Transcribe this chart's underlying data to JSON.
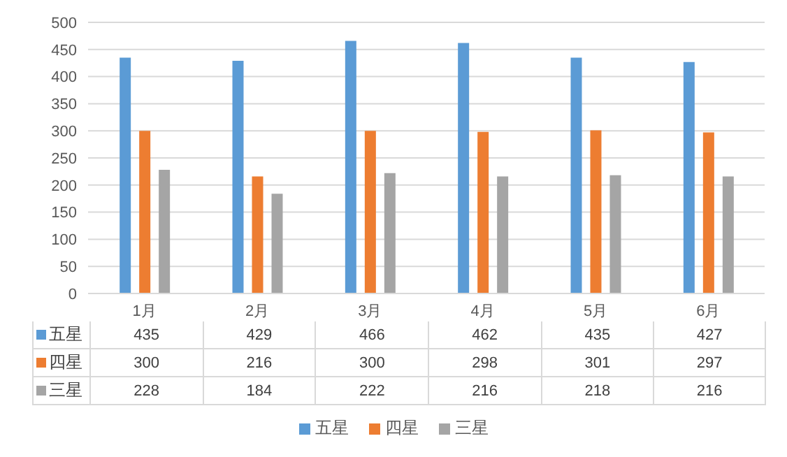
{
  "chart_data": {
    "type": "bar",
    "categories": [
      "1月",
      "2月",
      "3月",
      "4月",
      "5月",
      "6月"
    ],
    "series": [
      {
        "name": "五星",
        "color": "#5b9bd5",
        "values": [
          435,
          429,
          466,
          462,
          435,
          427
        ]
      },
      {
        "name": "四星",
        "color": "#ed7d31",
        "values": [
          300,
          216,
          300,
          298,
          301,
          297
        ]
      },
      {
        "name": "三星",
        "color": "#a5a5a5",
        "values": [
          228,
          184,
          222,
          216,
          218,
          216
        ]
      }
    ],
    "ylim": [
      0,
      500
    ],
    "yticks": [
      0,
      50,
      100,
      150,
      200,
      250,
      300,
      350,
      400,
      450,
      500
    ],
    "grid": "y",
    "legend": "bottom",
    "data_labels": true
  }
}
